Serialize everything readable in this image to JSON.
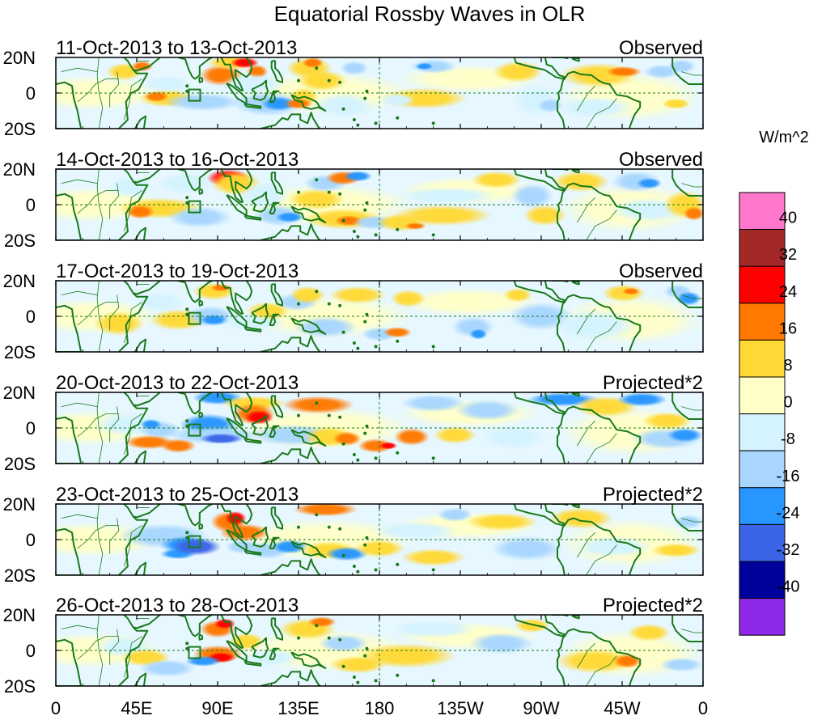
{
  "chart_data": {
    "type": "heatmap",
    "title": "Equatorial Rossby Waves in OLR",
    "units_label": "W/m^2",
    "x_tick_labels": [
      "0",
      "45E",
      "90E",
      "135E",
      "180",
      "135W",
      "90W",
      "45W",
      "0"
    ],
    "x_tick_values_deg": [
      0,
      45,
      90,
      135,
      180,
      225,
      270,
      315,
      360
    ],
    "y_tick_labels": [
      "20N",
      "0",
      "20S"
    ],
    "y_range_deg": [
      -20,
      20
    ],
    "x_range_deg": [
      0,
      360
    ],
    "panels": [
      {
        "date_range": "11-Oct-2013 to 13-Oct-2013",
        "label": "Observed"
      },
      {
        "date_range": "14-Oct-2013 to 16-Oct-2013",
        "label": "Observed"
      },
      {
        "date_range": "17-Oct-2013 to 19-Oct-2013",
        "label": "Observed"
      },
      {
        "date_range": "20-Oct-2013 to 22-Oct-2013",
        "label": "Projected*2"
      },
      {
        "date_range": "23-Oct-2013 to 25-Oct-2013",
        "label": "Projected*2"
      },
      {
        "date_range": "26-Oct-2013 to 28-Oct-2013",
        "label": "Projected*2"
      }
    ],
    "colorbar": {
      "levels": [
        "40",
        "32",
        "24",
        "16",
        "8",
        "0",
        "-8",
        "-16",
        "-24",
        "-32",
        "-40"
      ],
      "colors": [
        "#ff77cc",
        "#a52828",
        "#ff0000",
        "#ff7800",
        "#ffd935",
        "#ffffc8",
        "#d4f3ff",
        "#a8d6ff",
        "#2896ff",
        "#3c64e6",
        "#00009b",
        "#8c28e6"
      ]
    }
  }
}
